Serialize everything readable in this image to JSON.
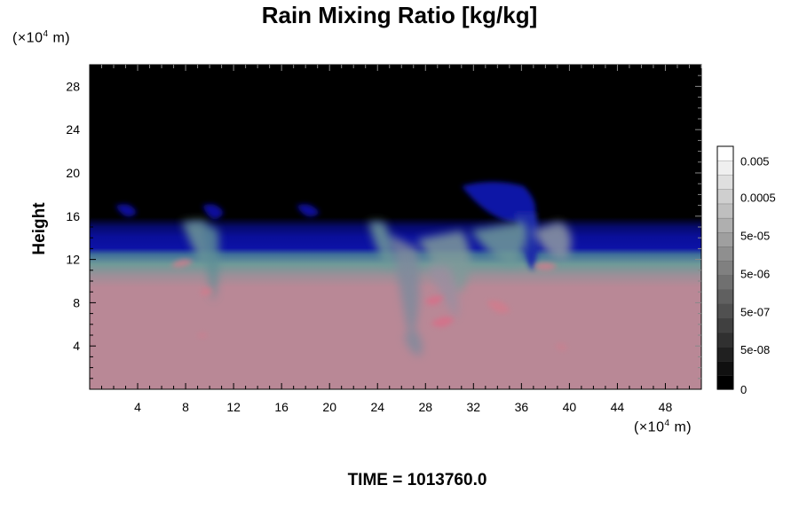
{
  "title": "Rain Mixing Ratio [kg/kg]",
  "time_label": "TIME = 1013760.0",
  "y_unit": {
    "prefix": "(×10",
    "exp": "4",
    "suffix": " m)"
  },
  "x_unit": {
    "prefix": "(×10",
    "exp": "4",
    "suffix": " m)"
  },
  "colors": {
    "background_top": "#000000",
    "band_blue": "#0a0f9a",
    "band_teal": "#5f8f96",
    "lower_pink": "#b98896",
    "streak_pink": "#d27c8c",
    "streak_grey": "#7f8a9c"
  },
  "chart_data": {
    "type": "heatmap",
    "title": "Rain Mixing Ratio [kg/kg]",
    "xlabel": "",
    "ylabel": "Height",
    "xlim": [
      0,
      51
    ],
    "ylim": [
      0,
      30
    ],
    "x_ticks": [
      4,
      8,
      12,
      16,
      20,
      24,
      28,
      32,
      36,
      40,
      44,
      48
    ],
    "y_ticks": [
      4,
      8,
      12,
      16,
      20,
      24,
      28
    ],
    "colorbar": {
      "labels": [
        {
          "value": "0.005",
          "pos": 0.94
        },
        {
          "value": "0.0005",
          "pos": 0.79
        },
        {
          "value": "5e-05",
          "pos": 0.634
        },
        {
          "value": "5e-06",
          "pos": 0.477
        },
        {
          "value": "5e-07",
          "pos": 0.32
        },
        {
          "value": "5e-08",
          "pos": 0.164
        },
        {
          "value": "0",
          "pos": 0.0
        }
      ],
      "levels": 17
    }
  }
}
